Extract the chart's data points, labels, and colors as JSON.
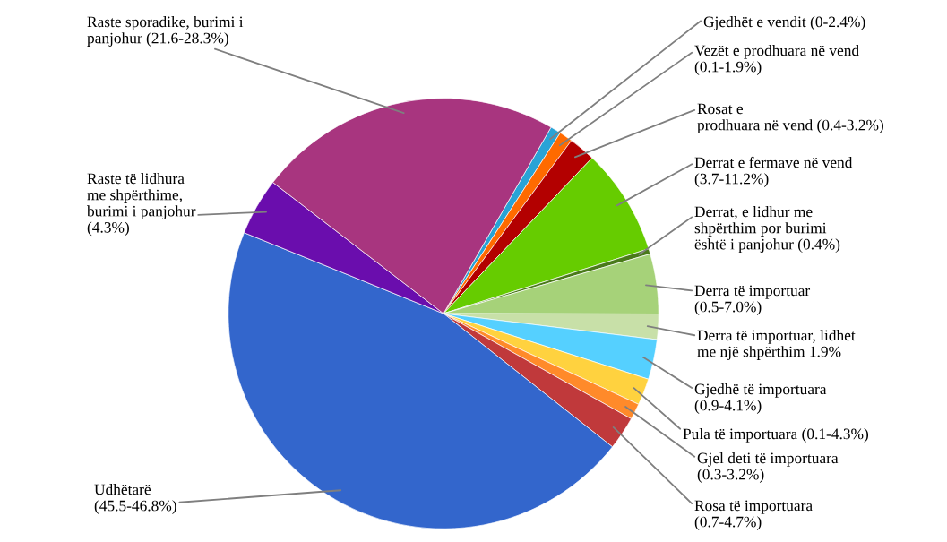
{
  "chart_data": {
    "type": "pie",
    "categories": [
      "Gjedhët e vendit (0-2.4%)",
      "Vezët e prodhuara në vend\n(0.1-1.9%)",
      "Rosat e\nprodhuara në vend (0.4-3.2%)",
      "Derrat e fermave në vend\n(3.7-11.2%)",
      "Derrat, e lidhur me\nshpërthim por burimi\nështë i panjohur (0.4%)",
      "Derra të importuar\n(0.5-7.0%)",
      "Derra të importuar, lidhet\nme një shpërthim 1.9%",
      "Gjedhë të importuara\n(0.9-4.1%)",
      "Pula të importuara (0.1-4.3%)",
      "Gjel deti të importuara\n(0.3-3.2%)",
      "Rosa të importuara\n(0.7-4.7%)",
      "Udhëtarë\n(45.5-46.8%)",
      "Raste të lidhura\nme shpërthime,\nburimi i panjohur\n(4.3%)",
      "Raste sporadike, burimi i\npanjohur (21.6-28.3%)"
    ],
    "values": [
      0.8,
      1.0,
      2.0,
      8.0,
      0.4,
      4.5,
      1.9,
      3.0,
      2.0,
      1.2,
      2.5,
      45.5,
      4.3,
      22.9
    ],
    "colors": [
      "#29a3d6",
      "#ff6a00",
      "#b30000",
      "#66cc00",
      "#4a7a1a",
      "#a6d279",
      "#c8e0a8",
      "#55d0ff",
      "#ffd23f",
      "#ff8a2a",
      "#c0393b",
      "#3366cc",
      "#6a0dad",
      "#a8357f"
    ]
  }
}
